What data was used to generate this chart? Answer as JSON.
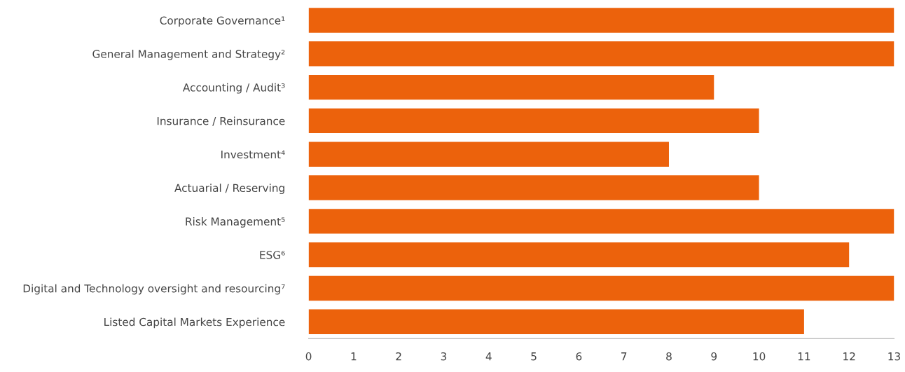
{
  "chart_data": {
    "type": "bar",
    "orientation": "horizontal",
    "categories": [
      "Corporate Governance¹",
      "General Management and Strategy²",
      "Accounting / Audit³",
      "Insurance / Reinsurance",
      "Investment⁴",
      "Actuarial / Reserving",
      "Risk Management⁵",
      "ESG⁶",
      "Digital and Technology oversight and resourcing⁷",
      "Listed Capital Markets Experience"
    ],
    "values": [
      13,
      13,
      9,
      10,
      8,
      10,
      13,
      12,
      13,
      11
    ],
    "color": "#ec620c",
    "xlim": [
      0,
      13
    ],
    "xticks": [
      0,
      1,
      2,
      3,
      4,
      5,
      6,
      7,
      8,
      9,
      10,
      11,
      12,
      13
    ],
    "grid": false,
    "legend": false
  }
}
